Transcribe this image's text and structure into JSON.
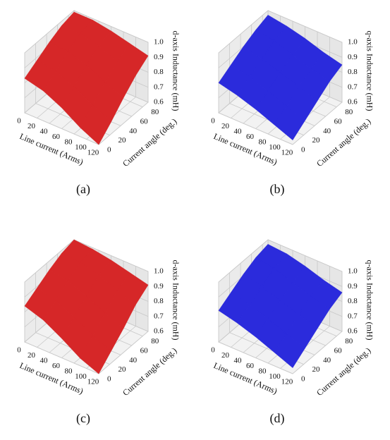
{
  "chart_data": [
    {
      "type": "surface",
      "label": "(a)",
      "xlabel": "Line current (Arms)",
      "ylabel": "Current angle (deg.)",
      "zlabel": "d-axis Inductance (mH)",
      "color": "#d62728",
      "x": [
        0,
        30,
        60,
        90,
        120
      ],
      "y": [
        0,
        22.5,
        45,
        67.5,
        90
      ],
      "z": [
        [
          0.83,
          0.8,
          0.74,
          0.66,
          0.6
        ],
        [
          0.88,
          0.86,
          0.81,
          0.74,
          0.68
        ],
        [
          0.93,
          0.92,
          0.88,
          0.82,
          0.77
        ],
        [
          0.97,
          0.97,
          0.94,
          0.89,
          0.85
        ],
        [
          0.99,
          0.99,
          0.97,
          0.94,
          0.91
        ]
      ],
      "xlim": [
        0,
        120
      ],
      "ylim": [
        0,
        90
      ],
      "zlim": [
        0.6,
        1.0
      ],
      "xticks": [
        0,
        20,
        40,
        60,
        80,
        100,
        120
      ],
      "yticks": [
        0,
        20,
        40,
        60,
        80
      ],
      "zticks": [
        0.6,
        0.7,
        0.8,
        0.9,
        {
          "value": 1,
          "label": "1.0"
        }
      ]
    },
    {
      "type": "surface",
      "label": "(b)",
      "xlabel": "Line current (Arms)",
      "ylabel": "Current angle (deg.)",
      "zlabel": "q-axis Inductance (mH)",
      "color": "#2b2bdc",
      "x": [
        0,
        30,
        60,
        90,
        120
      ],
      "y": [
        0,
        22.5,
        45,
        67.5,
        90
      ],
      "z": [
        [
          0.8,
          0.77,
          0.73,
          0.68,
          0.63
        ],
        [
          0.85,
          0.82,
          0.78,
          0.73,
          0.69
        ],
        [
          0.9,
          0.87,
          0.83,
          0.79,
          0.75
        ],
        [
          0.94,
          0.92,
          0.88,
          0.84,
          0.81
        ],
        [
          0.97,
          0.95,
          0.92,
          0.88,
          0.85
        ]
      ],
      "xlim": [
        0,
        120
      ],
      "ylim": [
        0,
        90
      ],
      "zlim": [
        0.6,
        1.0
      ],
      "xticks": [
        0,
        20,
        40,
        60,
        80,
        100,
        120
      ],
      "yticks": [
        0,
        20,
        40,
        60,
        80
      ],
      "zticks": [
        0.6,
        0.7,
        0.8,
        0.9,
        {
          "value": 1,
          "label": "1.0"
        }
      ]
    },
    {
      "type": "surface",
      "label": "(c)",
      "xlabel": "Line current (Arms)",
      "ylabel": "Current angle (deg.)",
      "zlabel": "d-axis Inductance (mH)",
      "color": "#d62728",
      "x": [
        0,
        30,
        60,
        90,
        120
      ],
      "y": [
        0,
        22.5,
        45,
        67.5,
        90
      ],
      "z": [
        [
          0.84,
          0.8,
          0.73,
          0.65,
          0.6
        ],
        [
          0.89,
          0.86,
          0.8,
          0.73,
          0.68
        ],
        [
          0.94,
          0.92,
          0.87,
          0.81,
          0.76
        ],
        [
          0.98,
          0.97,
          0.94,
          0.89,
          0.85
        ],
        [
          1.0,
          0.99,
          0.97,
          0.94,
          0.91
        ]
      ],
      "xlim": [
        0,
        120
      ],
      "ylim": [
        0,
        90
      ],
      "zlim": [
        0.6,
        1.0
      ],
      "xticks": [
        0,
        20,
        40,
        60,
        80,
        100,
        120
      ],
      "yticks": [
        0,
        20,
        40,
        60,
        80
      ],
      "zticks": [
        0.6,
        0.7,
        0.8,
        0.9,
        {
          "value": 1,
          "label": "1.0"
        }
      ]
    },
    {
      "type": "surface",
      "label": "(d)",
      "xlabel": "Line current (Arms)",
      "ylabel": "Current angle (deg.)",
      "zlabel": "q-axis Inductance (mH)",
      "color": "#2b2bdc",
      "x": [
        0,
        30,
        60,
        90,
        120
      ],
      "y": [
        0,
        22.5,
        45,
        67.5,
        90
      ],
      "z": [
        [
          0.81,
          0.78,
          0.74,
          0.69,
          0.64
        ],
        [
          0.86,
          0.83,
          0.79,
          0.74,
          0.7
        ],
        [
          0.91,
          0.88,
          0.84,
          0.8,
          0.76
        ],
        [
          0.95,
          0.93,
          0.89,
          0.85,
          0.82
        ],
        [
          0.97,
          0.96,
          0.93,
          0.89,
          0.86
        ]
      ],
      "xlim": [
        0,
        120
      ],
      "ylim": [
        0,
        90
      ],
      "zlim": [
        0.6,
        1.0
      ],
      "xticks": [
        0,
        20,
        40,
        60,
        80,
        100,
        120
      ],
      "yticks": [
        0,
        20,
        40,
        60,
        80
      ],
      "zticks": [
        0.6,
        0.7,
        0.8,
        0.9,
        {
          "value": 1,
          "label": "1.0"
        }
      ]
    }
  ]
}
